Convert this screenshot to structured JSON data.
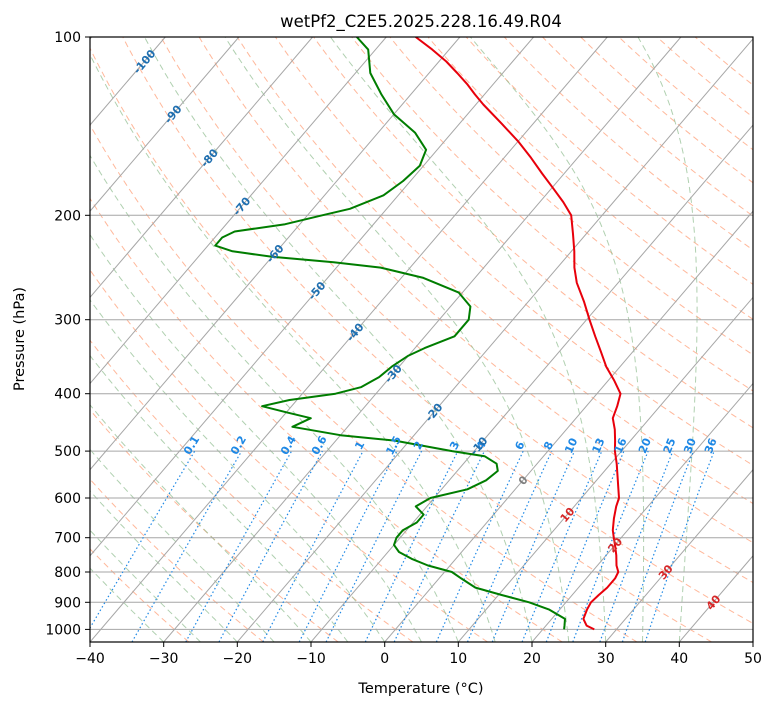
{
  "chart_data": {
    "type": "skew-t log-p",
    "title": "wetPf2_C2E5.2025.228.16.49.R04",
    "xlabel": "Temperature (°C)",
    "ylabel": "Pressure (hPa)",
    "xlim": [
      -40,
      50
    ],
    "ylim": [
      1050,
      100
    ],
    "y_scale": "log",
    "grid": true,
    "x_ticks": [
      -40,
      -30,
      -20,
      -10,
      0,
      10,
      20,
      30,
      40,
      50
    ],
    "x_tick_labels": [
      "−40",
      "−30",
      "−20",
      "−10",
      "0",
      "10",
      "20",
      "30",
      "40",
      "50"
    ],
    "y_ticks": [
      1000,
      900,
      800,
      700,
      600,
      500,
      400,
      300,
      200,
      100
    ],
    "y_tick_labels": [
      "1000",
      "900",
      "800",
      "700",
      "600",
      "500",
      "400",
      "300",
      "200",
      "100"
    ],
    "isotherm_labels": [
      {
        "t": -100,
        "text": "-100"
      },
      {
        "t": -90,
        "text": "-90"
      },
      {
        "t": -80,
        "text": "-80"
      },
      {
        "t": -70,
        "text": "-70"
      },
      {
        "t": -60,
        "text": "-60"
      },
      {
        "t": -50,
        "text": "-50"
      },
      {
        "t": -40,
        "text": "-40"
      },
      {
        "t": -30,
        "text": "-30"
      },
      {
        "t": -20,
        "text": "-20"
      },
      {
        "t": -10,
        "text": "-10"
      },
      {
        "t": 0,
        "text": "0"
      },
      {
        "t": 10,
        "text": "10"
      },
      {
        "t": 20,
        "text": "20"
      },
      {
        "t": 30,
        "text": "30"
      },
      {
        "t": 40,
        "text": "40"
      }
    ],
    "mixing_ratio_labels": [
      "0.1",
      "0.2",
      "0.4",
      "0.6",
      "1",
      "1.5",
      "2",
      "3",
      "4",
      "6",
      "8",
      "10",
      "13",
      "16",
      "20",
      "25",
      "30",
      "36"
    ],
    "colors": {
      "temperature": "#e8000b",
      "dewpoint": "#007d00",
      "isotherm_neg": "#1f6fb0",
      "isotherm_zero": "#808080",
      "isotherm_pos": "#d62728",
      "mixing_ratio": "#1e88e5",
      "dry_adiabat": "#ffa07a",
      "moist_adiabat": "#8fbc8f",
      "grid": "#a6a6a6"
    },
    "series": [
      {
        "name": "",
        "role": "temperature",
        "p": [
          1000,
          985,
          960,
          925,
          900,
          875,
          850,
          820,
          800,
          780,
          750,
          720,
          700,
          680,
          650,
          620,
          600,
          580,
          550,
          525,
          500,
          480,
          460,
          440,
          420,
          400,
          380,
          360,
          340,
          320,
          300,
          280,
          260,
          245,
          230,
          215,
          200,
          190,
          180,
          170,
          160,
          150,
          140,
          130,
          125,
          120,
          115,
          110,
          105,
          100
        ],
        "t": [
          27.0,
          25.5,
          24.3,
          23.7,
          23.4,
          23.6,
          23.9,
          23.9,
          23.6,
          22.6,
          21.4,
          20.0,
          19.0,
          18.0,
          16.8,
          15.7,
          15.1,
          14.0,
          12.3,
          10.8,
          9.1,
          7.9,
          6.6,
          5.0,
          4.2,
          3.2,
          0.8,
          -1.9,
          -4.3,
          -6.9,
          -9.6,
          -12.4,
          -15.6,
          -17.7,
          -19.6,
          -21.8,
          -24.2,
          -26.8,
          -29.8,
          -33.0,
          -36.3,
          -40.0,
          -44.3,
          -49.0,
          -51.3,
          -53.6,
          -56.2,
          -59.0,
          -62.3,
          -66.0
        ]
      },
      {
        "name": "",
        "role": "dewpoint",
        "p": [
          1000,
          985,
          960,
          925,
          900,
          875,
          850,
          820,
          800,
          780,
          760,
          740,
          720,
          700,
          680,
          660,
          640,
          620,
          600,
          580,
          560,
          540,
          525,
          510,
          500,
          480,
          470,
          455,
          440,
          430,
          420,
          410,
          400,
          390,
          375,
          360,
          345,
          335,
          320,
          300,
          285,
          270,
          255,
          245,
          240,
          235,
          230,
          225,
          218,
          213,
          207,
          200,
          195,
          185,
          175,
          165,
          155,
          145,
          135,
          125,
          115,
          105,
          100
        ],
        "t": [
          22.9,
          22.5,
          21.8,
          18.5,
          15.0,
          10.5,
          6.0,
          3.0,
          1.0,
          -3.0,
          -6.0,
          -8.5,
          -10.0,
          -10.5,
          -10.5,
          -9.5,
          -9.5,
          -11.5,
          -10.5,
          -6.5,
          -5.0,
          -4.5,
          -5.5,
          -8.0,
          -13.0,
          -22.0,
          -30.0,
          -37.5,
          -36.0,
          -40.0,
          -44.0,
          -41.0,
          -35.5,
          -32.8,
          -31.5,
          -31.0,
          -30.0,
          -28.7,
          -26.0,
          -26.0,
          -27.3,
          -30.5,
          -37.0,
          -44.0,
          -51.0,
          -60.0,
          -66.0,
          -69.0,
          -69.0,
          -68.0,
          -62.0,
          -58.0,
          -55.0,
          -52.0,
          -51.0,
          -50.5,
          -51.5,
          -55.0,
          -60.0,
          -64.0,
          -68.0,
          -71.0,
          -74.0
        ]
      }
    ]
  }
}
